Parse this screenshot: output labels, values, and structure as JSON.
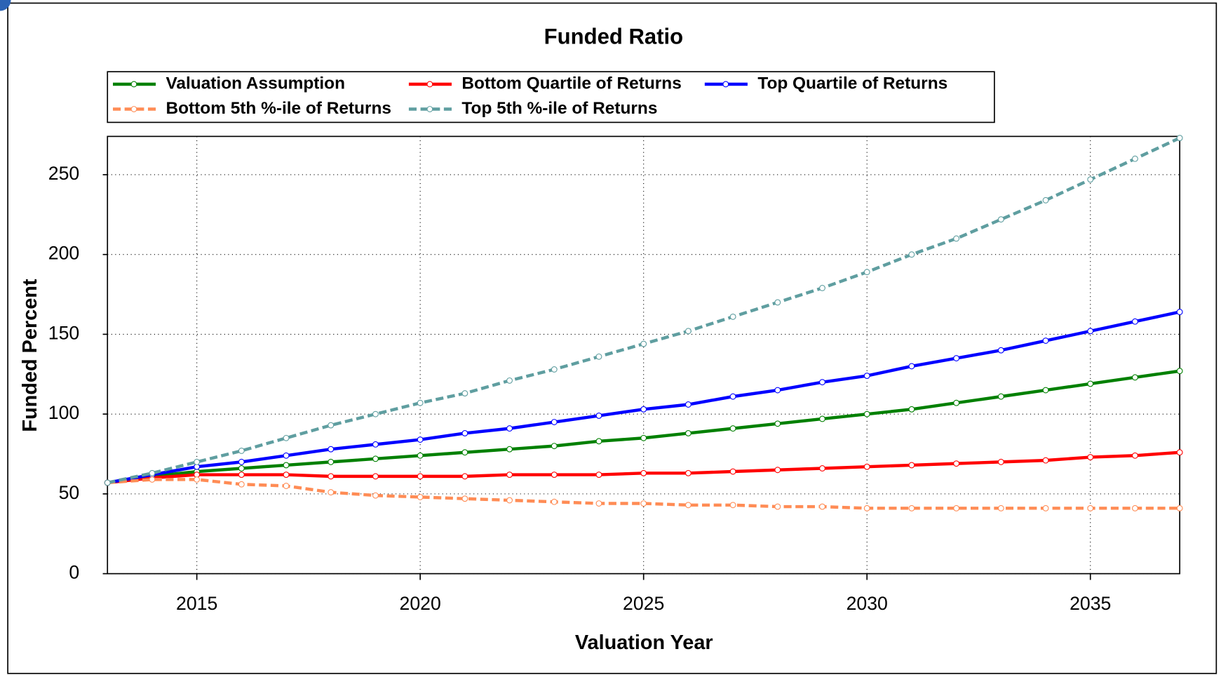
{
  "chart_data": {
    "type": "line",
    "title": "Funded Ratio",
    "x_label": "Valuation Year",
    "y_label": "Funded Percent",
    "x": [
      2013,
      2014,
      2015,
      2016,
      2017,
      2018,
      2019,
      2020,
      2021,
      2022,
      2023,
      2024,
      2025,
      2026,
      2027,
      2028,
      2029,
      2030,
      2031,
      2032,
      2033,
      2034,
      2035,
      2036,
      2037
    ],
    "series": [
      {
        "name": "Valuation Assumption",
        "color": "#008000",
        "dashed": false,
        "values": [
          57,
          61,
          64,
          66,
          68,
          70,
          72,
          74,
          76,
          78,
          80,
          83,
          85,
          88,
          91,
          94,
          97,
          100,
          103,
          107,
          111,
          115,
          119,
          123,
          127
        ]
      },
      {
        "name": "Bottom Quartile of Returns",
        "color": "#ff0000",
        "dashed": false,
        "values": [
          57,
          60,
          62,
          62,
          62,
          61,
          61,
          61,
          61,
          62,
          62,
          62,
          63,
          63,
          64,
          65,
          66,
          67,
          68,
          69,
          70,
          71,
          73,
          74,
          76
        ]
      },
      {
        "name": "Top Quartile of Returns",
        "color": "#0000ff",
        "dashed": false,
        "values": [
          57,
          62,
          67,
          70,
          74,
          78,
          81,
          84,
          88,
          91,
          95,
          99,
          103,
          106,
          111,
          115,
          120,
          124,
          130,
          135,
          140,
          146,
          152,
          158,
          164
        ]
      },
      {
        "name": "Bottom 5th %-ile of Returns",
        "color": "#ff8c55",
        "dashed": true,
        "values": [
          57,
          59,
          59,
          56,
          55,
          51,
          49,
          48,
          47,
          46,
          45,
          44,
          44,
          43,
          43,
          42,
          42,
          41,
          41,
          41,
          41,
          41,
          41,
          41,
          41
        ]
      },
      {
        "name": "Top 5th %-ile of Returns",
        "color": "#5f9ea0",
        "dashed": true,
        "values": [
          57,
          63,
          70,
          77,
          85,
          93,
          100,
          107,
          113,
          121,
          128,
          136,
          144,
          152,
          161,
          170,
          179,
          189,
          200,
          210,
          222,
          234,
          247,
          260,
          273
        ]
      }
    ],
    "xlim": [
      2013,
      2037
    ],
    "ylim": [
      0,
      274
    ],
    "xticks": [
      2015,
      2020,
      2025,
      2030,
      2035
    ],
    "yticks": [
      0,
      50,
      100,
      150,
      200,
      250
    ],
    "grid": true,
    "legend": "top-left"
  }
}
